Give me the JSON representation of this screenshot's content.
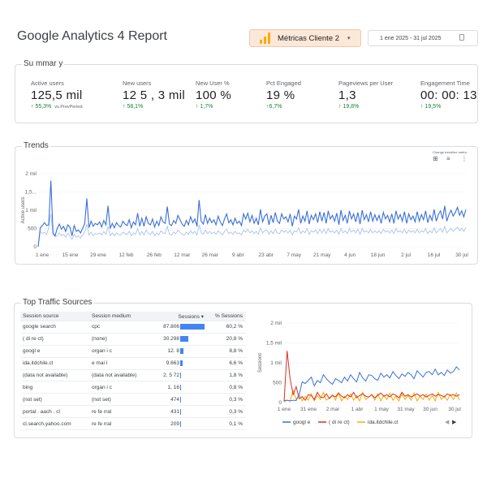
{
  "header": {
    "title": "Google Analytics 4 Report",
    "account_label": "Métricas Cliente 2",
    "date_range": "1 ene 2025 - 31 jul 2025"
  },
  "summary": {
    "title": "Su mmar y",
    "kpis": [
      {
        "label": "Active users",
        "value": "125,5 mil",
        "delta": "↑ 55,3%",
        "vs": "vs.PrevPeriod"
      },
      {
        "label": "New users",
        "value": "12 5 , 3  mil",
        "delta": "↑ 58,1%"
      },
      {
        "label": "New User %",
        "value": "100  %",
        "delta": "↑ 1,7%"
      },
      {
        "label": "Pct Engaged",
        "value": "19 %",
        "delta": "↑6,7%"
      },
      {
        "label": "Pageviews per User",
        "value": "1,3",
        "delta": "↑ 19,8%"
      },
      {
        "label": "Engagement Time",
        "value": "00: 00: 13",
        "delta": "↑ 19,5%"
      }
    ]
  },
  "trends": {
    "title": "Trends",
    "toolbar_label": "Change trendline metric",
    "icons": [
      "tune-icon",
      "filter-icon",
      "more-vert-icon"
    ],
    "colors": {
      "primary": "#3b6fd8",
      "secondary": "#a9c3ee"
    },
    "chart_data": {
      "type": "line",
      "ylabel": "Active users",
      "y_ticks": [
        "0",
        "500",
        "1 mil",
        "1,5...",
        "2 mil"
      ],
      "ylim": [
        0,
        2000
      ],
      "x_ticks": [
        "1 ene",
        "15 ene",
        "29 ene",
        "12 feb",
        "26 feb",
        "12 mar",
        "26 mar",
        "9 abr",
        "23 abr",
        "7 may",
        "21 may",
        "4 jun",
        "18 jun",
        "2 jul",
        "16 jul",
        "30 jul"
      ],
      "series": [
        {
          "values": [
            1,
            520,
            580,
            660,
            580,
            600,
            1810,
            380,
            300,
            500,
            620,
            480,
            560,
            420,
            600,
            540,
            300,
            580,
            420,
            460,
            380,
            500,
            640,
            1320,
            520,
            700,
            560,
            640,
            600,
            680,
            540,
            720,
            600,
            1120,
            500,
            640,
            520,
            660,
            580,
            540,
            700,
            620,
            580,
            740,
            520,
            680,
            600,
            920,
            560,
            780,
            560,
            820,
            640,
            600,
            760,
            540,
            700,
            580,
            820,
            680,
            640,
            1100,
            620,
            580,
            720,
            640,
            860,
            740,
            620,
            560,
            720,
            600,
            820,
            660,
            760,
            560,
            1280,
            700,
            620,
            880,
            640,
            780,
            660,
            740,
            600,
            840,
            680,
            580,
            760,
            900,
            660,
            740,
            600,
            780,
            640,
            700,
            580,
            900,
            760,
            920,
            680,
            860,
            640,
            780,
            600,
            1020,
            680,
            840,
            900,
            600,
            860,
            660,
            940,
            700,
            640,
            900,
            760,
            820,
            680,
            900,
            560,
            840,
            760,
            1020,
            640,
            840,
            700,
            980,
            620,
            860,
            740,
            900,
            660,
            960,
            700,
            940,
            640,
            980,
            760,
            860,
            700,
            920,
            600,
            1000,
            720,
            860,
            640,
            980,
            760,
            900,
            680,
            940,
            620,
            1000,
            740,
            880,
            680,
            960,
            700,
            880,
            720,
            860,
            640,
            940,
            760,
            860,
            680,
            900,
            640,
            980,
            760,
            880,
            700,
            960,
            640,
            900,
            740,
            840,
            680,
            960,
            700,
            880,
            740,
            980,
            660,
            860,
            720,
            1020,
            700,
            880,
            980,
            760,
            1120,
            700,
            880,
            1000,
            840,
            940,
            1080,
            860,
            980,
            820,
            1020
          ]
        },
        {
          "values": [
            1,
            420,
            360,
            400,
            330,
            520,
            900,
            320,
            280,
            300,
            380,
            300,
            340,
            260,
            360,
            300,
            200,
            340,
            260,
            300,
            240,
            320,
            400,
            620,
            320,
            400,
            300,
            360,
            340,
            380,
            320,
            420,
            340,
            560,
            300,
            380,
            300,
            380,
            340,
            320,
            400,
            360,
            340,
            420,
            300,
            380,
            340,
            500,
            320,
            420,
            320,
            460,
            360,
            340,
            420,
            300,
            380,
            320,
            440,
            380,
            360,
            560,
            340,
            320,
            400,
            360,
            460,
            400,
            340,
            320,
            400,
            340,
            440,
            360,
            420,
            320,
            600,
            380,
            340,
            460,
            360,
            420,
            360,
            400,
            340,
            440,
            380,
            320,
            420,
            480,
            360,
            400,
            340,
            420,
            360,
            380,
            320,
            460,
            400,
            480,
            380,
            440,
            360,
            420,
            340,
            520,
            380,
            440,
            460,
            340,
            440,
            360,
            480,
            380,
            360,
            460,
            400,
            440,
            380,
            460,
            320,
            440,
            400,
            520,
            360,
            440,
            380,
            500,
            340,
            440,
            400,
            460,
            360,
            480,
            380,
            480,
            360,
            500,
            400,
            440,
            380,
            460,
            340,
            500,
            380,
            440,
            360,
            500,
            400,
            460,
            380,
            480,
            340,
            500,
            400,
            440,
            380,
            480,
            380,
            440,
            380,
            440,
            360,
            480,
            400,
            440,
            380,
            460,
            360,
            500,
            400,
            440,
            380,
            480,
            360,
            460,
            400,
            440,
            380,
            480,
            380,
            440,
            400,
            500,
            360,
            440,
            380,
            520,
            380,
            440,
            500,
            400,
            560,
            380,
            440,
            500,
            420,
            480,
            540,
            440,
            500,
            420,
            520
          ]
        }
      ]
    }
  },
  "sources": {
    "title": "Top Traffic Sources",
    "table": {
      "headers": [
        "Session source",
        "Session medium",
        "Sessions ▾",
        "% Sessions"
      ],
      "rows": [
        {
          "source": "google search",
          "medium": "cpc",
          "sessions": "87.806",
          "pct": "60,2 %",
          "share": 60.2
        },
        {
          "source": "( di re ct)",
          "medium": "(none)",
          "sessions": "30.298",
          "pct": "20,8 %",
          "share": 20.8
        },
        {
          "source": "googl e",
          "medium": "organ i c",
          "sessions": "12. 8",
          "pct": "8,8 %",
          "share": 8.8
        },
        {
          "source": "ida.itdchile.cl",
          "medium": "e mai l",
          "sessions": "9.663",
          "pct": "6,6 %",
          "share": 6.6
        },
        {
          "source": "(data not available)",
          "medium": "(data not available)",
          "sessions": "2. 5 72",
          "pct": "1,8 %",
          "share": 1.8
        },
        {
          "source": "bing",
          "medium": "organ i c",
          "sessions": "1, 16",
          "pct": "0,8 %",
          "share": 0.8
        },
        {
          "source": "(not set)",
          "medium": "(not set)",
          "sessions": "474",
          "pct": "0,3 %",
          "share": 0.3
        },
        {
          "source": "portal . aach . cl",
          "medium": "re fe rral",
          "sessions": "431",
          "pct": "0,3 %",
          "share": 0.3
        },
        {
          "source": "cl.search.yahoo.com",
          "medium": "re fe rral",
          "sessions": "209",
          "pct": "0,1 %",
          "share": 0.1
        }
      ]
    },
    "chart_data": {
      "type": "line",
      "ylabel": "Sessions",
      "y_ticks": [
        "0",
        "500",
        "1 mil",
        "1,5 mil",
        "2 mil"
      ],
      "ylim": [
        0,
        2000
      ],
      "x_ticks": [
        "1 ene",
        "31 ene",
        "2 mar",
        "1 abr",
        "1 may",
        "31 may",
        "30 jun",
        "30 jul"
      ],
      "legend": [
        "googl e",
        "( di re ct)",
        "ida.itdchile.cl"
      ],
      "colors": [
        "#3b6fd8",
        "#d93025",
        "#f9ab00"
      ],
      "series": [
        {
          "name": "googl e",
          "values": [
            50,
            60,
            40,
            60,
            50,
            200,
            520,
            480,
            560,
            640,
            420,
            560,
            500,
            700,
            600,
            520,
            460,
            600,
            560,
            500,
            640,
            540,
            700,
            600,
            520,
            760,
            620,
            540,
            700,
            680,
            600,
            560,
            740,
            640,
            700,
            620,
            780,
            680,
            600,
            720,
            660,
            760,
            700,
            600,
            800,
            720,
            640,
            760,
            780,
            700,
            840,
            700,
            760,
            680,
            820,
            740,
            780,
            900,
            820
          ]
        },
        {
          "name": "( di re ct)",
          "values": [
            30,
            1300,
            600,
            200,
            400,
            100,
            150,
            60,
            200,
            180,
            80,
            260,
            140,
            120,
            220,
            100,
            180,
            140,
            240,
            160,
            120,
            200,
            140,
            260,
            120,
            180,
            220,
            160,
            140,
            200,
            120,
            180,
            240,
            160,
            200,
            140,
            220,
            180,
            120,
            260,
            160,
            200,
            140,
            180,
            220,
            160,
            200,
            140,
            180,
            220,
            160,
            200,
            180,
            140,
            220,
            180,
            200,
            160,
            200
          ]
        },
        {
          "name": "ida.itdchile.cl",
          "values": [
            20,
            60,
            40,
            300,
            80,
            200,
            40,
            160,
            60,
            220,
            40,
            180,
            80,
            260,
            60,
            120,
            200,
            60,
            240,
            40,
            160,
            80,
            220,
            60,
            180,
            40,
            260,
            80,
            140,
            200,
            60,
            220,
            40,
            180,
            80,
            240,
            60,
            160,
            40,
            220,
            80,
            180,
            60,
            240,
            40,
            160,
            80,
            220,
            60,
            180,
            40,
            260,
            80,
            160,
            60,
            200,
            80,
            240,
            60
          ]
        }
      ]
    },
    "pager": {
      "prev": "◀",
      "next": "▶"
    }
  }
}
